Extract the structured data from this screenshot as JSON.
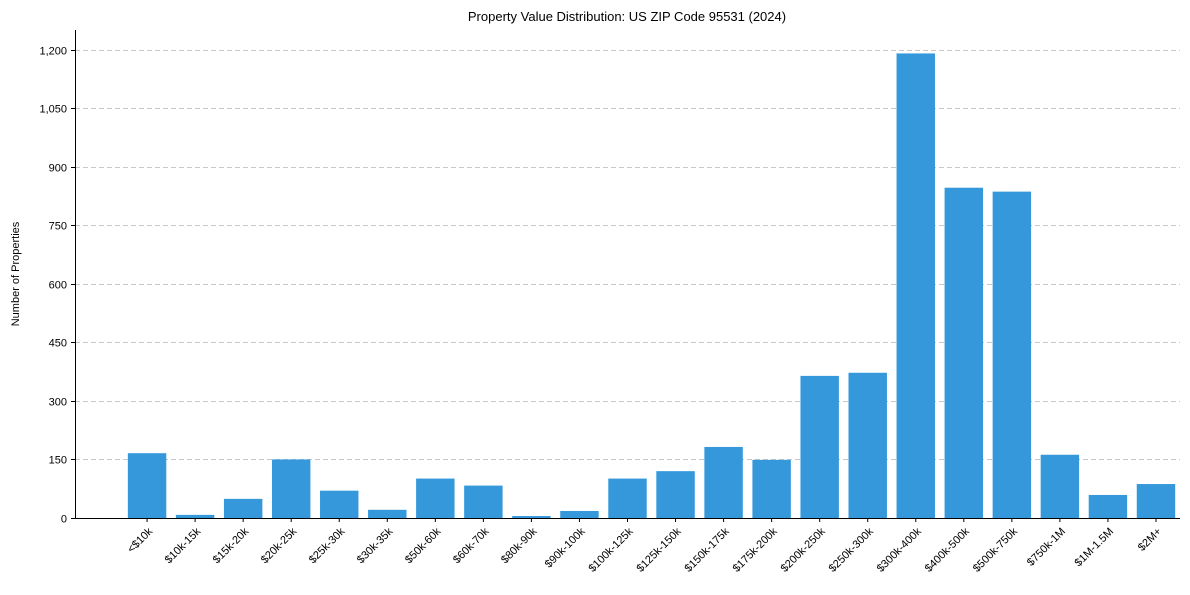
{
  "chart_data": {
    "type": "bar",
    "title": "Property Value Distribution: US ZIP Code 95531 (2024)",
    "xlabel": "",
    "ylabel": "Number of Properties",
    "ylim": [
      0,
      1250
    ],
    "yticks": [
      0,
      150,
      300,
      450,
      600,
      750,
      900,
      1050,
      1200
    ],
    "ytick_labels": [
      "0",
      "150",
      "300",
      "450",
      "600",
      "750",
      "900",
      "1,050",
      "1,200"
    ],
    "grid": "y-dashed",
    "color": "#3498db",
    "categories": [
      "<$10k",
      "$10k-15k",
      "$15k-20k",
      "$20k-25k",
      "$25k-30k",
      "$30k-35k",
      "$50k-60k",
      "$60k-70k",
      "$80k-90k",
      "$90k-100k",
      "$100k-125k",
      "$125k-150k",
      "$150k-175k",
      "$175k-200k",
      "$200k-250k",
      "$250k-300k",
      "$300k-400k",
      "$400k-500k",
      "$500k-750k",
      "$750k-1M",
      "$1M-1.5M",
      "$2M+"
    ],
    "values": [
      166,
      8,
      49,
      150,
      70,
      21,
      101,
      83,
      5,
      18,
      101,
      120,
      182,
      149,
      364,
      372,
      1190,
      846,
      836,
      162,
      59,
      87
    ]
  }
}
